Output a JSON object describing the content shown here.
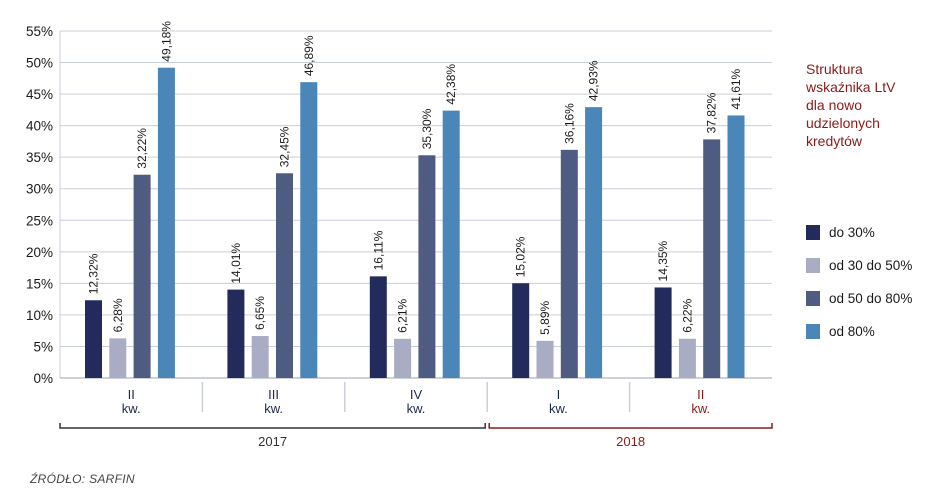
{
  "chart_data": {
    "type": "bar",
    "categories": [
      {
        "quarter": "II",
        "suffix": "kw.",
        "year": "2017"
      },
      {
        "quarter": "III",
        "suffix": "kw.",
        "year": "2017"
      },
      {
        "quarter": "IV",
        "suffix": "kw.",
        "year": "2017"
      },
      {
        "quarter": "I",
        "suffix": "kw.",
        "year": "2018"
      },
      {
        "quarter": "II",
        "suffix": "kw.",
        "year": "2018"
      }
    ],
    "series": [
      {
        "name": "do 30%",
        "color": "#232a5c",
        "values": [
          12.32,
          14.01,
          16.11,
          15.02,
          14.35
        ],
        "labels": [
          "12,32%",
          "14,01%",
          "16,11%",
          "15,02%",
          "14,35%"
        ]
      },
      {
        "name": "od 30 do 50%",
        "color": "#a9adc4",
        "values": [
          6.28,
          6.65,
          6.21,
          5.89,
          6.22
        ],
        "labels": [
          "6,28%",
          "6,65%",
          "6,21%",
          "5,89%",
          "6,22%"
        ]
      },
      {
        "name": "od 50 do 80%",
        "color": "#4f5c82",
        "values": [
          32.22,
          32.45,
          35.3,
          36.16,
          37.82
        ],
        "labels": [
          "32,22%",
          "32,45%",
          "35,30%",
          "36,16%",
          "37,82%"
        ]
      },
      {
        "name": "od 80%",
        "color": "#4a86b8",
        "values": [
          49.18,
          46.89,
          42.38,
          42.93,
          41.61
        ],
        "labels": [
          "49,18%",
          "46,89%",
          "42,38%",
          "42,93%",
          "41,61%"
        ]
      }
    ],
    "y_ticks": [
      "0%",
      "5%",
      "10%",
      "15%",
      "20%",
      "25%",
      "30%",
      "35%",
      "40%",
      "45%",
      "50%",
      "55%"
    ],
    "ylim": [
      0,
      55
    ],
    "grid": true,
    "year_groups": [
      {
        "label": "2017",
        "from": 0,
        "to": 2,
        "color": "#333333"
      },
      {
        "label": "2018",
        "from": 3,
        "to": 4,
        "color": "#8b1a1a"
      }
    ],
    "highlight_category": 4,
    "highlight_color": "#8b1a1a",
    "legend_title": "Struktura\nwskaźnika LtV\ndla nowo\nudzielonych\nkredytów",
    "legend_title_color": "#8b1a1a",
    "legend_position": "right"
  },
  "source": "ŹRÓDŁO: SARFIN"
}
